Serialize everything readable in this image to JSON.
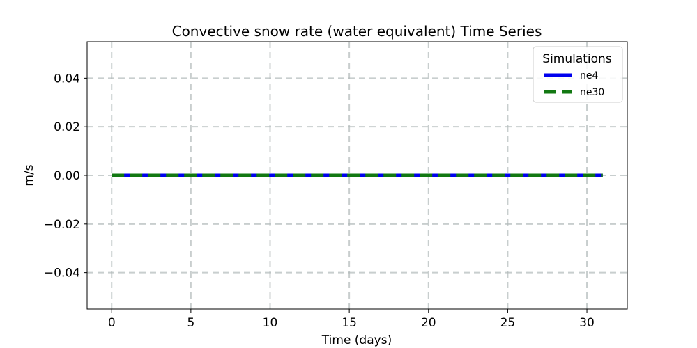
{
  "chart_data": {
    "type": "line",
    "title": "Convective snow rate (water equivalent) Time Series",
    "xlabel": "Time (days)",
    "ylabel": "m/s",
    "xlim": [
      -1.55,
      32.55
    ],
    "ylim": [
      -0.055,
      0.055
    ],
    "xticks": [
      0,
      5,
      10,
      15,
      20,
      25,
      30
    ],
    "xtick_labels": [
      "0",
      "5",
      "10",
      "15",
      "20",
      "25",
      "30"
    ],
    "yticks": [
      -0.04,
      -0.02,
      0.0,
      0.02,
      0.04
    ],
    "ytick_labels": [
      "−0.04",
      "−0.02",
      "0.00",
      "0.02",
      "0.04"
    ],
    "grid": true,
    "legend": {
      "title": "Simulations",
      "placement": "upper-right"
    },
    "series": [
      {
        "name": "ne4",
        "color": "#0000ee",
        "style": "solid",
        "x": [
          0,
          31
        ],
        "values": [
          0.0,
          0.0
        ]
      },
      {
        "name": "ne30",
        "color": "#127812",
        "style": "dashed",
        "x": [
          0,
          31
        ],
        "values": [
          0.0,
          0.0
        ]
      }
    ]
  }
}
